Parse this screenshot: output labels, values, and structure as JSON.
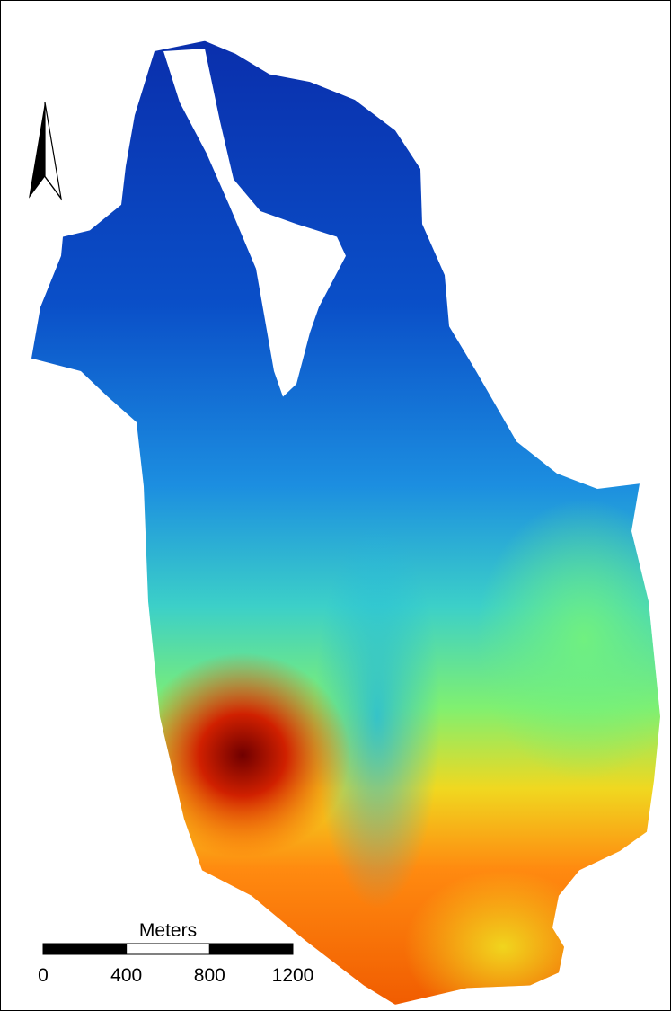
{
  "scale_bar": {
    "unit": "Meters",
    "ticks": [
      0,
      400,
      800,
      1200
    ]
  }
}
